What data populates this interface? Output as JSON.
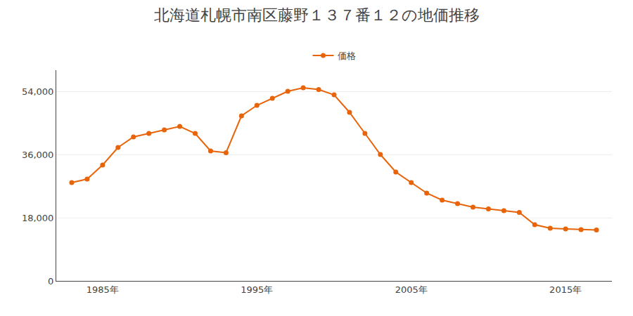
{
  "chart_data": {
    "type": "line",
    "title": "北海道札幌市南区藤野１３７番１２の地価推移",
    "x": [
      1983,
      1984,
      1985,
      1986,
      1987,
      1988,
      1989,
      1990,
      1991,
      1992,
      1993,
      1994,
      1995,
      1996,
      1997,
      1998,
      1999,
      2000,
      2001,
      2002,
      2003,
      2004,
      2005,
      2006,
      2007,
      2008,
      2009,
      2010,
      2011,
      2012,
      2013,
      2014,
      2015,
      2016,
      2017
    ],
    "series": [
      {
        "name": "価格",
        "color": "#e8640a",
        "marker": "circle",
        "values": [
          28000,
          29000,
          33000,
          38000,
          41000,
          42000,
          43000,
          44000,
          42000,
          37000,
          36500,
          47000,
          50000,
          52000,
          54000,
          55000,
          54500,
          53000,
          48000,
          42000,
          36000,
          31000,
          28000,
          25000,
          23000,
          22000,
          21000,
          20500,
          20000,
          19500,
          16000,
          15000,
          14800,
          14600,
          14500
        ]
      }
    ],
    "xlim": [
      1982,
      2018
    ],
    "xticks": [
      {
        "value": 1985,
        "label": "1985年"
      },
      {
        "value": 1995,
        "label": "1995年"
      },
      {
        "value": 2005,
        "label": "2005年"
      },
      {
        "value": 2015,
        "label": "2015年"
      }
    ],
    "ylim": [
      0,
      60000
    ],
    "yticks": [
      0,
      {
        "value": 18000,
        "label": "18,000"
      },
      {
        "value": 36000,
        "label": "36,000"
      },
      {
        "value": 54000,
        "label": "54,000"
      }
    ],
    "grid": "y",
    "legend": "top"
  }
}
